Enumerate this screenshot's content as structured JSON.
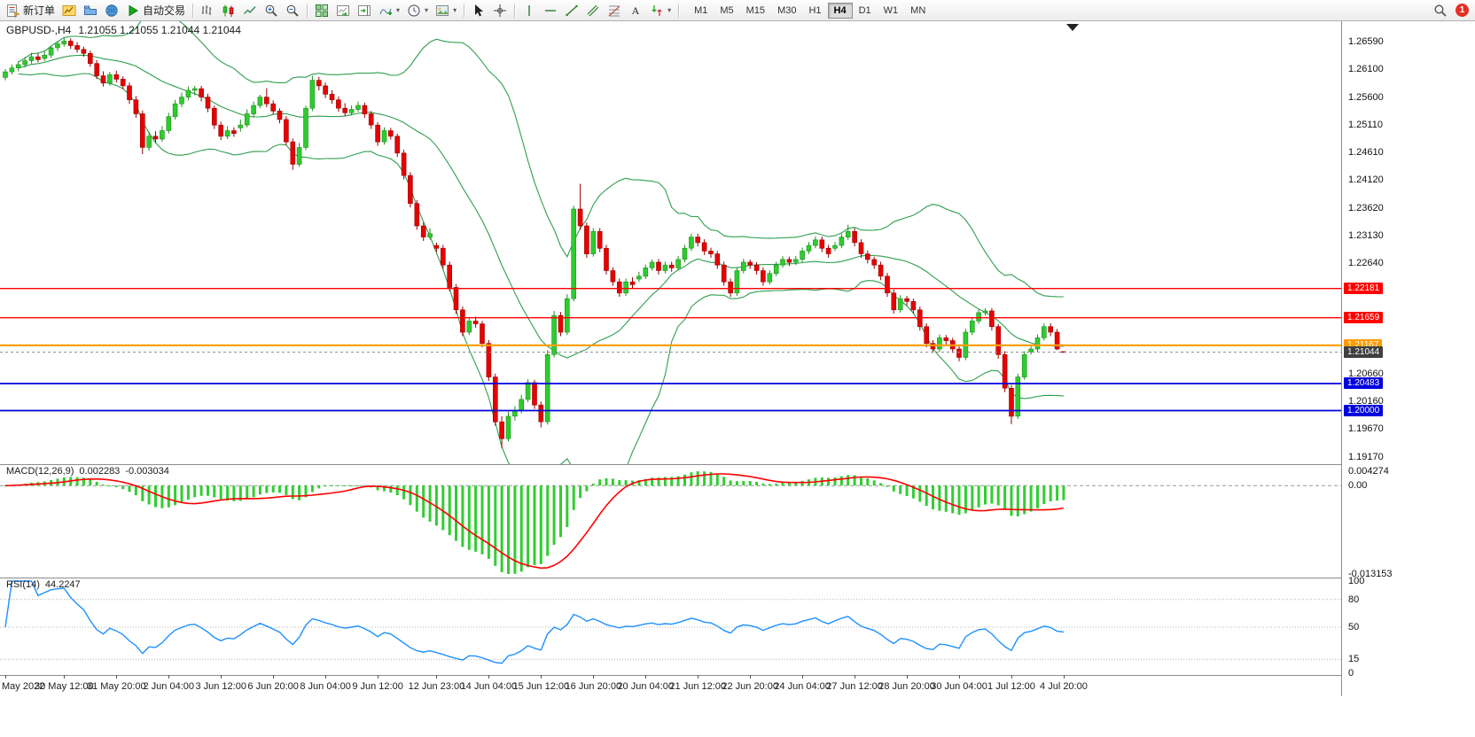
{
  "colors": {
    "up": "#2ecc2e",
    "up_border": "#1d8f1d",
    "down": "#e80000",
    "down_border": "#990000",
    "bollinger": "#2f9e4f",
    "macd_hist": "#32cd32",
    "macd_signal": "#ff0000",
    "rsi_line": "#1e90ff",
    "level_red": "#ff0000",
    "level_blue": "#0000dd",
    "level_gold": "#ff9c00",
    "current_badge": "#3f3f3f"
  },
  "toolbar": {
    "buttons": [
      {
        "name": "new-order",
        "icon": "new-order",
        "label": "新订单"
      },
      {
        "name": "new-chart",
        "icon": "new-chart"
      },
      {
        "name": "profiles",
        "icon": "profiles"
      },
      {
        "name": "community",
        "icon": "globe"
      },
      {
        "name": "auto-trading",
        "icon": "play",
        "label": "自动交易"
      },
      {
        "sep": true
      },
      {
        "name": "bar-chart",
        "icon": "bars"
      },
      {
        "name": "candlestick-chart",
        "icon": "candles"
      },
      {
        "name": "line-chart",
        "icon": "line"
      },
      {
        "name": "zoom-in",
        "icon": "zoom-in"
      },
      {
        "name": "zoom-out",
        "icon": "zoom-out"
      },
      {
        "sep": true
      },
      {
        "name": "tile-windows",
        "icon": "grid-green"
      },
      {
        "name": "auto-scroll",
        "icon": "chart-scroll"
      },
      {
        "name": "chart-shift",
        "icon": "chart-shift"
      },
      {
        "name": "indicators",
        "icon": "indicator-plus",
        "caret": true
      },
      {
        "name": "periods",
        "icon": "clock",
        "caret": true
      },
      {
        "name": "templates",
        "icon": "template",
        "caret": true
      },
      {
        "sep": true
      },
      {
        "name": "cursor",
        "icon": "cursor"
      },
      {
        "name": "crosshair",
        "icon": "crosshair"
      },
      {
        "sep": true
      },
      {
        "name": "vertical-line",
        "icon": "vline"
      },
      {
        "name": "horizontal-line",
        "icon": "hline"
      },
      {
        "name": "trendline",
        "icon": "trendline"
      },
      {
        "name": "equidistant-channel",
        "icon": "channel"
      },
      {
        "name": "fibonacci-retracement",
        "icon": "fibo"
      },
      {
        "name": "text-label",
        "icon": "text"
      },
      {
        "name": "arrow-objects",
        "icon": "arrows",
        "caret": true
      },
      {
        "sep": true
      }
    ],
    "timeframes": [
      "M1",
      "M5",
      "M15",
      "M30",
      "H1",
      "H4",
      "D1",
      "W1",
      "MN"
    ],
    "active_timeframe": "H4",
    "notification_count": "1"
  },
  "quote": {
    "symbol_period": "GBPUSD-,H4",
    "ohlc": "1.21055 1.21055 1.21044 1.21044"
  },
  "price_scale": {
    "labels": [
      "1.26590",
      "1.26100",
      "1.25600",
      "1.25110",
      "1.24610",
      "1.24120",
      "1.23620",
      "1.23130",
      "1.22640",
      "1.20660",
      "1.20160",
      "1.19670",
      "1.19170"
    ],
    "badges": [
      {
        "text": "1.22181",
        "color": "#ff0000"
      },
      {
        "text": "1.21659",
        "color": "#ff0000"
      },
      {
        "text": "1.21167",
        "color": "#ff9c00"
      },
      {
        "text": "1.21044",
        "color": "#3f3f3f"
      },
      {
        "text": "1.20483",
        "color": "#0000dd"
      },
      {
        "text": "1.20000",
        "color": "#0000dd"
      }
    ]
  },
  "hlines": [
    {
      "price": 1.22181,
      "color": "#ff0000",
      "width": 1.4
    },
    {
      "price": 1.21659,
      "color": "#ff0000",
      "width": 1.4
    },
    {
      "price": 1.21167,
      "color": "#ff9c00",
      "width": 2.2
    },
    {
      "price": 1.20483,
      "color": "#0000dd",
      "width": 1.8
    },
    {
      "price": 1.2,
      "color": "#0000dd",
      "width": 1.8
    }
  ],
  "current_price": "1.21044",
  "chart_data": {
    "type": "candlestick",
    "symbol": "GBPUSD",
    "timeframe": "H4",
    "y_axis": {
      "top": 1.2659,
      "bottom": 1.1917
    },
    "overlays": {
      "bollinger_bands": {
        "period": 20,
        "deviation": 2
      }
    },
    "candles": [
      [
        1.2595,
        1.261,
        1.259,
        1.2605
      ],
      [
        1.2605,
        1.2618,
        1.26,
        1.2612
      ],
      [
        1.2612,
        1.2624,
        1.2606,
        1.2618
      ],
      [
        1.2618,
        1.2631,
        1.2613,
        1.2625
      ],
      [
        1.2625,
        1.2639,
        1.262,
        1.2632
      ],
      [
        1.2632,
        1.2638,
        1.2622,
        1.2627
      ],
      [
        1.2629,
        1.2642,
        1.2624,
        1.2635
      ],
      [
        1.2635,
        1.2652,
        1.263,
        1.2648
      ],
      [
        1.2648,
        1.266,
        1.2642,
        1.2655
      ],
      [
        1.2655,
        1.2666,
        1.265,
        1.266
      ],
      [
        1.266,
        1.2665,
        1.2646,
        1.2652
      ],
      [
        1.2652,
        1.2658,
        1.2639,
        1.2645
      ],
      [
        1.2645,
        1.265,
        1.2632,
        1.2638
      ],
      [
        1.2638,
        1.2643,
        1.2614,
        1.262
      ],
      [
        1.262,
        1.2626,
        1.2592,
        1.2598
      ],
      [
        1.2598,
        1.2606,
        1.2579,
        1.2585
      ],
      [
        1.2585,
        1.2605,
        1.258,
        1.26
      ],
      [
        1.26,
        1.2607,
        1.2586,
        1.2592
      ],
      [
        1.2592,
        1.2597,
        1.2574,
        1.258
      ],
      [
        1.258,
        1.2586,
        1.2548,
        1.2555
      ],
      [
        1.2555,
        1.2562,
        1.2523,
        1.253
      ],
      [
        1.253,
        1.2536,
        1.2458,
        1.247
      ],
      [
        1.247,
        1.2498,
        1.2464,
        1.249
      ],
      [
        1.249,
        1.2499,
        1.2478,
        1.2485
      ],
      [
        1.2485,
        1.2508,
        1.248,
        1.25
      ],
      [
        1.25,
        1.2532,
        1.2495,
        1.2525
      ],
      [
        1.2525,
        1.2555,
        1.252,
        1.2548
      ],
      [
        1.2548,
        1.2568,
        1.2542,
        1.256
      ],
      [
        1.256,
        1.2579,
        1.2554,
        1.2572
      ],
      [
        1.2572,
        1.258,
        1.2563,
        1.2575
      ],
      [
        1.2575,
        1.258,
        1.2552,
        1.256
      ],
      [
        1.256,
        1.2566,
        1.2533,
        1.254
      ],
      [
        1.254,
        1.2545,
        1.2503,
        1.251
      ],
      [
        1.251,
        1.2516,
        1.2483,
        1.249
      ],
      [
        1.249,
        1.2508,
        1.2485,
        1.25
      ],
      [
        1.25,
        1.2506,
        1.2489,
        1.2495
      ],
      [
        1.2505,
        1.252,
        1.2498,
        1.251
      ],
      [
        1.251,
        1.2538,
        1.2506,
        1.253
      ],
      [
        1.253,
        1.2552,
        1.2524,
        1.2545
      ],
      [
        1.2545,
        1.2564,
        1.254,
        1.256
      ],
      [
        1.256,
        1.2576,
        1.2542,
        1.2548
      ],
      [
        1.2548,
        1.2554,
        1.2529,
        1.2535
      ],
      [
        1.2535,
        1.254,
        1.2513,
        1.252
      ],
      [
        1.252,
        1.2526,
        1.2474,
        1.248
      ],
      [
        1.248,
        1.2486,
        1.243,
        1.244
      ],
      [
        1.244,
        1.2478,
        1.2435,
        1.247
      ],
      [
        1.247,
        1.2545,
        1.2465,
        1.254
      ],
      [
        1.254,
        1.2598,
        1.2535,
        1.259
      ],
      [
        1.259,
        1.2596,
        1.2572,
        1.258
      ],
      [
        1.258,
        1.2586,
        1.2558,
        1.2565
      ],
      [
        1.2565,
        1.2572,
        1.2548,
        1.2555
      ],
      [
        1.2555,
        1.2561,
        1.2534,
        1.254
      ],
      [
        1.254,
        1.2549,
        1.2526,
        1.2532
      ],
      [
        1.2532,
        1.2545,
        1.2527,
        1.2538
      ],
      [
        1.2538,
        1.2552,
        1.2533,
        1.2545
      ],
      [
        1.2545,
        1.255,
        1.2523,
        1.253
      ],
      [
        1.253,
        1.2535,
        1.2503,
        1.251
      ],
      [
        1.251,
        1.2515,
        1.2473,
        1.248
      ],
      [
        1.248,
        1.2506,
        1.2475,
        1.25
      ],
      [
        1.25,
        1.2505,
        1.2484,
        1.249
      ],
      [
        1.249,
        1.2495,
        1.2453,
        1.246
      ],
      [
        1.246,
        1.2466,
        1.2413,
        1.242
      ],
      [
        1.242,
        1.2426,
        1.2363,
        1.237
      ],
      [
        1.237,
        1.2376,
        1.2323,
        1.233
      ],
      [
        1.233,
        1.2336,
        1.2303,
        1.231
      ],
      [
        1.231,
        1.2326,
        1.2305,
        1.2316
      ],
      [
        1.2295,
        1.23,
        1.2283,
        1.229
      ],
      [
        1.229,
        1.2296,
        1.2253,
        1.226
      ],
      [
        1.226,
        1.2266,
        1.2213,
        1.222
      ],
      [
        1.222,
        1.2226,
        1.2173,
        1.218
      ],
      [
        1.218,
        1.2186,
        1.2133,
        1.214
      ],
      [
        1.214,
        1.2166,
        1.2135,
        1.216
      ],
      [
        1.216,
        1.2168,
        1.2148,
        1.2155
      ],
      [
        1.2155,
        1.216,
        1.2113,
        1.212
      ],
      [
        1.212,
        1.2126,
        1.2053,
        1.206
      ],
      [
        1.206,
        1.2066,
        1.1973,
        1.198
      ],
      [
        1.198,
        1.199,
        1.1933,
        1.195
      ],
      [
        1.195,
        1.1998,
        1.1945,
        1.199
      ],
      [
        1.199,
        1.2008,
        1.1982,
        1.2
      ],
      [
        1.2,
        1.2028,
        1.1995,
        1.202
      ],
      [
        1.202,
        1.2056,
        1.2015,
        1.205
      ],
      [
        1.205,
        1.2055,
        1.2003,
        1.201
      ],
      [
        1.201,
        1.2016,
        1.197,
        1.198
      ],
      [
        1.198,
        1.2108,
        1.1975,
        1.21
      ],
      [
        1.21,
        1.2178,
        1.2095,
        1.217
      ],
      [
        1.217,
        1.2176,
        1.2133,
        1.214
      ],
      [
        1.214,
        1.2208,
        1.2135,
        1.22
      ],
      [
        1.22,
        1.2366,
        1.2195,
        1.236
      ],
      [
        1.236,
        1.2405,
        1.2323,
        1.233
      ],
      [
        1.233,
        1.2336,
        1.2273,
        1.228
      ],
      [
        1.228,
        1.2326,
        1.2275,
        1.232
      ],
      [
        1.232,
        1.2326,
        1.2283,
        1.229
      ],
      [
        1.229,
        1.2296,
        1.2243,
        1.225
      ],
      [
        1.225,
        1.2256,
        1.2223,
        1.223
      ],
      [
        1.223,
        1.2236,
        1.2203,
        1.221
      ],
      [
        1.221,
        1.2236,
        1.2205,
        1.223
      ],
      [
        1.223,
        1.2238,
        1.2218,
        1.2225
      ],
      [
        1.2235,
        1.2248,
        1.223,
        1.224
      ],
      [
        1.224,
        1.2261,
        1.2235,
        1.2255
      ],
      [
        1.2255,
        1.227,
        1.225,
        1.2265
      ],
      [
        1.2265,
        1.2271,
        1.2243,
        1.225
      ],
      [
        1.225,
        1.2266,
        1.2245,
        1.226
      ],
      [
        1.226,
        1.2266,
        1.2248,
        1.2255
      ],
      [
        1.2255,
        1.2276,
        1.225,
        1.227
      ],
      [
        1.227,
        1.2296,
        1.2265,
        1.229
      ],
      [
        1.229,
        1.2316,
        1.2285,
        1.231
      ],
      [
        1.231,
        1.2316,
        1.2293,
        1.23
      ],
      [
        1.23,
        1.2306,
        1.2278,
        1.2285
      ],
      [
        1.2285,
        1.2291,
        1.2273,
        1.228
      ],
      [
        1.228,
        1.2285,
        1.2253,
        1.226
      ],
      [
        1.226,
        1.2266,
        1.2223,
        1.223
      ],
      [
        1.223,
        1.2236,
        1.2203,
        1.221
      ],
      [
        1.221,
        1.2256,
        1.2205,
        1.225
      ],
      [
        1.225,
        1.2271,
        1.2245,
        1.2265
      ],
      [
        1.2265,
        1.227,
        1.2253,
        1.226
      ],
      [
        1.226,
        1.2265,
        1.2243,
        1.225
      ],
      [
        1.225,
        1.2256,
        1.2223,
        1.223
      ],
      [
        1.223,
        1.2251,
        1.2225,
        1.2245
      ],
      [
        1.2245,
        1.2266,
        1.224,
        1.226
      ],
      [
        1.226,
        1.2276,
        1.2255,
        1.227
      ],
      [
        1.227,
        1.2275,
        1.2258,
        1.2265
      ],
      [
        1.2265,
        1.2276,
        1.226,
        1.227
      ],
      [
        1.227,
        1.2291,
        1.2265,
        1.2285
      ],
      [
        1.2285,
        1.2301,
        1.228,
        1.2295
      ],
      [
        1.2295,
        1.2311,
        1.229,
        1.2305
      ],
      [
        1.2305,
        1.2311,
        1.2283,
        1.229
      ],
      [
        1.229,
        1.2296,
        1.2273,
        1.228
      ],
      [
        1.229,
        1.2301,
        1.2285,
        1.2295
      ],
      [
        1.2295,
        1.2316,
        1.229,
        1.231
      ],
      [
        1.231,
        1.2332,
        1.2305,
        1.232
      ],
      [
        1.232,
        1.2326,
        1.2293,
        1.23
      ],
      [
        1.23,
        1.2306,
        1.2273,
        1.228
      ],
      [
        1.228,
        1.2286,
        1.2263,
        1.227
      ],
      [
        1.227,
        1.2275,
        1.2253,
        1.226
      ],
      [
        1.226,
        1.2266,
        1.2233,
        1.224
      ],
      [
        1.224,
        1.2246,
        1.2203,
        1.221
      ],
      [
        1.221,
        1.2216,
        1.2173,
        1.218
      ],
      [
        1.218,
        1.2206,
        1.2175,
        1.22
      ],
      [
        1.22,
        1.2205,
        1.2188,
        1.2195
      ],
      [
        1.2195,
        1.22,
        1.2173,
        1.218
      ],
      [
        1.218,
        1.2186,
        1.2143,
        1.215
      ],
      [
        1.215,
        1.2156,
        1.2113,
        1.212
      ],
      [
        1.212,
        1.2126,
        1.2103,
        1.211
      ],
      [
        1.211,
        1.2136,
        1.2105,
        1.213
      ],
      [
        1.213,
        1.2135,
        1.2118,
        1.2125
      ],
      [
        1.2125,
        1.213,
        1.2103,
        1.211
      ],
      [
        1.211,
        1.2116,
        1.2088,
        1.2095
      ],
      [
        1.2095,
        1.2146,
        1.209,
        1.214
      ],
      [
        1.214,
        1.2166,
        1.2135,
        1.216
      ],
      [
        1.216,
        1.2181,
        1.2155,
        1.2175
      ],
      [
        1.2175,
        1.2183,
        1.217,
        1.2178
      ],
      [
        1.2178,
        1.2183,
        1.2143,
        1.215
      ],
      [
        1.215,
        1.2155,
        1.2093,
        1.21
      ],
      [
        1.21,
        1.2106,
        1.2033,
        1.204
      ],
      [
        1.204,
        1.2046,
        1.1976,
        1.199
      ],
      [
        1.199,
        1.2066,
        1.1985,
        1.206
      ],
      [
        1.206,
        1.2106,
        1.2055,
        1.21
      ],
      [
        1.2105,
        1.2116,
        1.21,
        1.211
      ],
      [
        1.211,
        1.2136,
        1.2105,
        1.213
      ],
      [
        1.213,
        1.2156,
        1.2125,
        1.215
      ],
      [
        1.215,
        1.2156,
        1.2133,
        1.214
      ],
      [
        1.214,
        1.2146,
        1.2108,
        1.211
      ],
      [
        1.21055,
        1.21055,
        1.21044,
        1.21044
      ]
    ],
    "macd": {
      "label": "MACD(12,26,9)",
      "value": "0.002283",
      "signal_value": "-0.003034",
      "fast": 12,
      "slow": 26,
      "signal": 9,
      "scale_top": "0.004274",
      "scale_zero": "0.00",
      "scale_bottom": "-0.013153"
    },
    "rsi": {
      "label": "RSI(14)",
      "value": "44.2247",
      "period": 14,
      "scale": [
        "100",
        "80",
        "50",
        "15",
        "0"
      ],
      "levels": [
        80,
        50,
        15
      ]
    }
  },
  "time_axis": [
    {
      "text": "May 2022",
      "idx": 0
    },
    {
      "text": "30 May 12:00",
      "idx": 9
    },
    {
      "text": "31 May 20:00",
      "idx": 17
    },
    {
      "text": "2 Jun 04:00",
      "idx": 25
    },
    {
      "text": "3 Jun 12:00",
      "idx": 33
    },
    {
      "text": "6 Jun 20:00",
      "idx": 41
    },
    {
      "text": "8 Jun 04:00",
      "idx": 49
    },
    {
      "text": "9 Jun 12:00",
      "idx": 57
    },
    {
      "text": "12 Jun 23:00",
      "idx": 66
    },
    {
      "text": "14 Jun 04:00",
      "idx": 74
    },
    {
      "text": "15 Jun 12:00",
      "idx": 82
    },
    {
      "text": "16 Jun 20:00",
      "idx": 90
    },
    {
      "text": "20 Jun 04:00",
      "idx": 98
    },
    {
      "text": "21 Jun 12:00",
      "idx": 106
    },
    {
      "text": "22 Jun 20:00",
      "idx": 114
    },
    {
      "text": "24 Jun 04:00",
      "idx": 122
    },
    {
      "text": "27 Jun 12:00",
      "idx": 130
    },
    {
      "text": "28 Jun 20:00",
      "idx": 138
    },
    {
      "text": "30 Jun 04:00",
      "idx": 146
    },
    {
      "text": "1 Jul 12:00",
      "idx": 154
    },
    {
      "text": "4 Jul 20:00",
      "idx": 162
    }
  ]
}
